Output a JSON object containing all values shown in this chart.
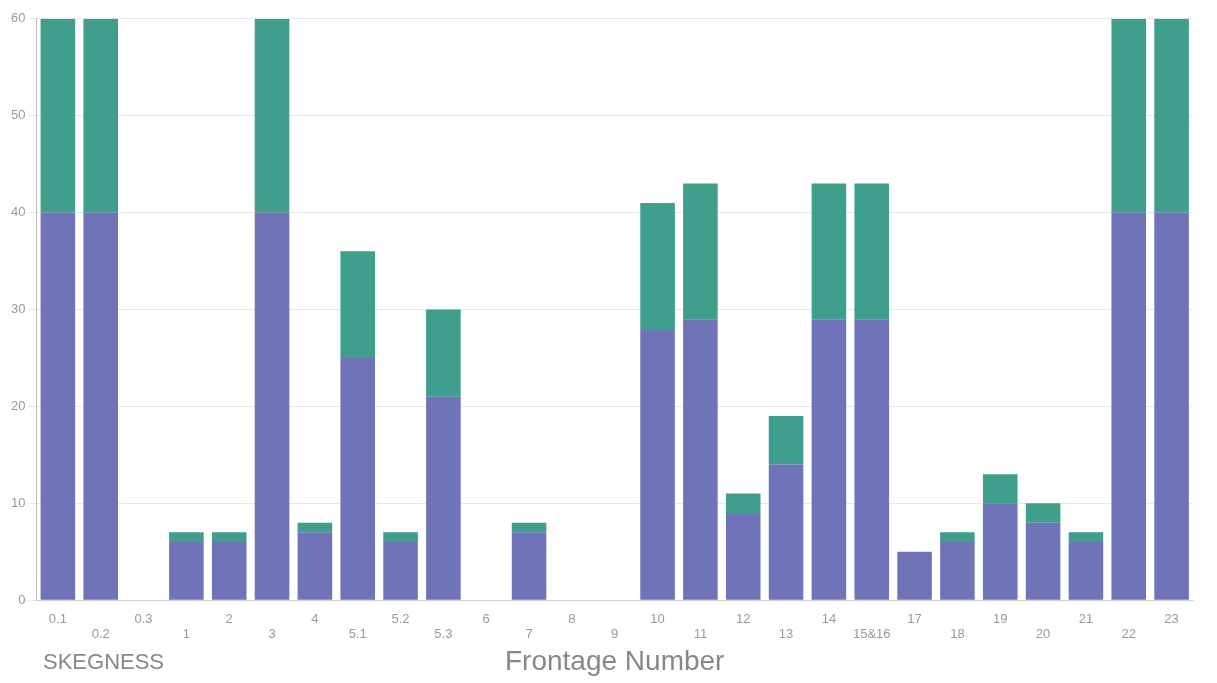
{
  "chart_data": {
    "type": "bar",
    "stacked": true,
    "xlabel": "Frontage Number",
    "annotations": [
      "SKEGNESS"
    ],
    "categories": [
      "0.1",
      "0.2",
      "0.3",
      "1",
      "2",
      "3",
      "4",
      "5.1",
      "5.2",
      "5.3",
      "6",
      "7",
      "8",
      "9",
      "10",
      "11",
      "12",
      "13",
      "14",
      "15&16",
      "17",
      "18",
      "19",
      "20",
      "21",
      "22",
      "23"
    ],
    "series": [
      {
        "color": "#6f74b8",
        "values": [
          40,
          40,
          0,
          6,
          6,
          40,
          7,
          25,
          6,
          21,
          0,
          7,
          0,
          0,
          28,
          29,
          9,
          14,
          29,
          29,
          5,
          6,
          10,
          8,
          6,
          40,
          40
        ]
      },
      {
        "color": "#3f9e8c",
        "values": [
          20,
          20,
          0,
          1,
          1,
          20,
          1,
          11,
          1,
          9,
          0,
          1,
          0,
          0,
          13,
          14,
          2,
          5,
          14,
          14,
          0,
          1,
          3,
          2,
          1,
          20,
          20
        ]
      }
    ],
    "ylim": [
      0,
      60
    ],
    "yticks": [
      0,
      10,
      20,
      30,
      40,
      50,
      60
    ],
    "grid": "y",
    "legend": false
  }
}
